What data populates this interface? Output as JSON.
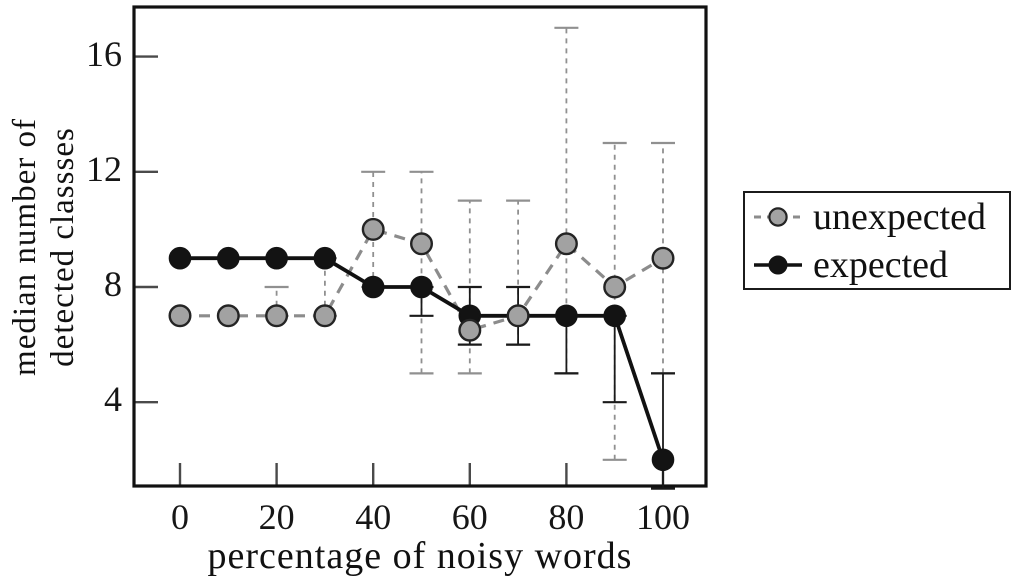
{
  "figure": {
    "background": "#ffffff",
    "text_color": "#111111"
  },
  "axes": {
    "y_label_lines": [
      "median number of",
      "detected classses"
    ]
  },
  "chart_data": {
    "type": "line",
    "title": "",
    "xlabel": "percentage of noisy words",
    "ylabel": "median number of detected classses",
    "x": [
      0,
      10,
      20,
      30,
      40,
      50,
      60,
      70,
      80,
      90,
      100
    ],
    "x_ticks": [
      0,
      20,
      40,
      60,
      80,
      100
    ],
    "y_ticks": [
      4,
      8,
      12,
      16
    ],
    "xlim": [
      -10,
      109
    ],
    "ylim": [
      1,
      17.7
    ],
    "grid": false,
    "legend_position": "right-outside",
    "series": [
      {
        "name": "unexpected",
        "style": "dashed",
        "color": "#8c8c8c",
        "marker_fill": "#a2a2a2",
        "marker_stroke": "#242424",
        "error_color": "#909090",
        "values": [
          7,
          7,
          7,
          7,
          10,
          9.5,
          6.5,
          7,
          9.5,
          8,
          9
        ],
        "error_low": [
          null,
          null,
          7,
          7,
          8,
          5,
          5,
          6,
          5,
          2,
          5
        ],
        "error_high": [
          null,
          null,
          8,
          9,
          12,
          12,
          11,
          11,
          17,
          13,
          13
        ]
      },
      {
        "name": "expected",
        "style": "solid",
        "color": "#111111",
        "marker_fill": "#131313",
        "marker_stroke": "#131313",
        "error_color": "#1a1a1a",
        "values": [
          9,
          9,
          9,
          9,
          8,
          8,
          7,
          7,
          7,
          7,
          2
        ],
        "error_low": [
          null,
          null,
          null,
          null,
          null,
          7,
          6,
          6,
          5,
          4,
          1
        ],
        "error_high": [
          null,
          null,
          null,
          null,
          null,
          8,
          8,
          8,
          7,
          7,
          5
        ]
      }
    ]
  }
}
